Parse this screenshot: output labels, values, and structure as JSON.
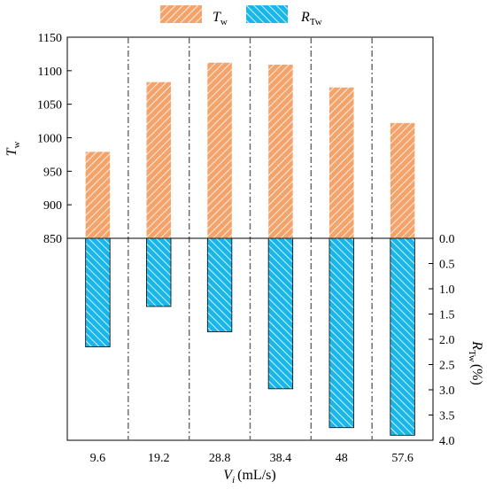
{
  "chart_data": {
    "type": "bar",
    "categories": [
      "9.6",
      "19.2",
      "28.8",
      "38.4",
      "48",
      "57.6"
    ],
    "series": [
      {
        "name": "T_w",
        "name_main": "T",
        "name_sub": "w",
        "color": "#f4a46b",
        "axis": "left",
        "values": [
          979,
          1083,
          1112,
          1109,
          1075,
          1022
        ]
      },
      {
        "name": "R_Tw",
        "name_main": "R",
        "name_sub": "Tw",
        "color": "#19b6ea",
        "axis": "right",
        "values": [
          2.15,
          1.35,
          1.85,
          2.98,
          3.75,
          3.9
        ]
      }
    ],
    "y_left": {
      "label_main": "T",
      "label_sub": "w",
      "lim": [
        850,
        1150
      ],
      "ticks": [
        "850",
        "900",
        "950",
        "1000",
        "1050",
        "1100",
        "1150"
      ]
    },
    "y_right": {
      "label_main": "R",
      "label_sub": "Tw",
      "label_unit": "(%)",
      "lim": [
        0,
        4
      ],
      "inverted": true,
      "ticks": [
        "0.0",
        "0.5",
        "1.0",
        "1.5",
        "2.0",
        "2.5",
        "3.0",
        "3.5",
        "4.0"
      ]
    },
    "x_axis": {
      "label_main": "V",
      "label_sub": "i",
      "label_unit": "(mL/s)"
    },
    "legend": "top",
    "grid": "vertical dash-dot separators between categories"
  }
}
